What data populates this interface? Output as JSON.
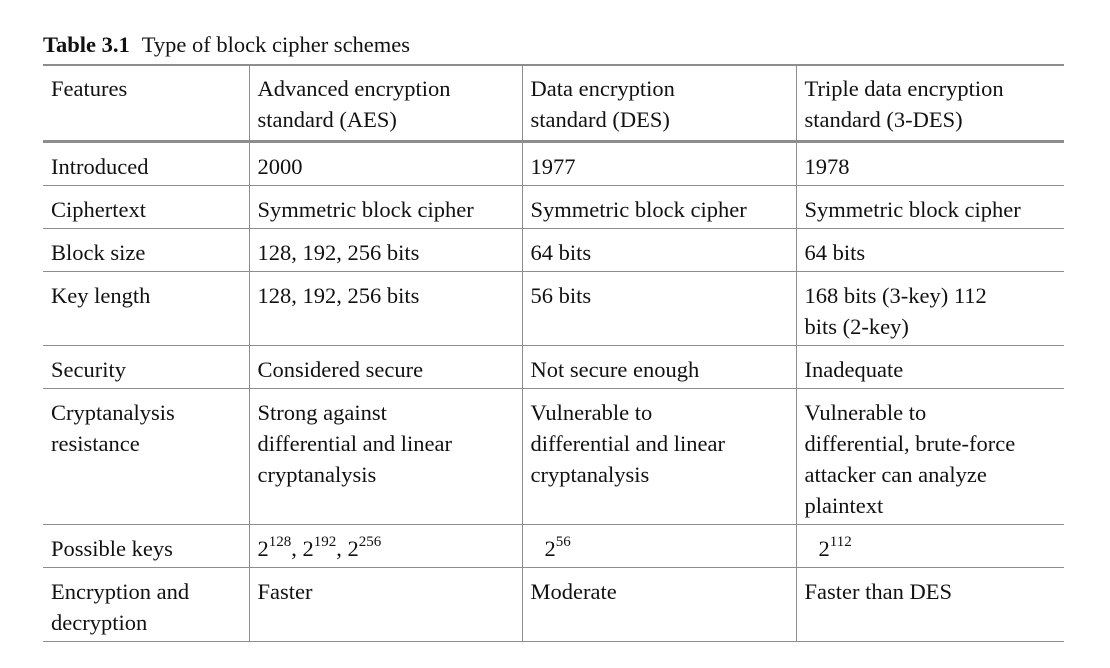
{
  "caption": {
    "label": "Table 3.1",
    "title": "Type of block cipher schemes"
  },
  "table": {
    "headers": [
      [
        "Features"
      ],
      [
        "Advanced encryption",
        "standard (AES)"
      ],
      [
        "Data encryption",
        "standard (DES)"
      ],
      [
        "Triple data encryption",
        "standard (3-DES)"
      ]
    ],
    "rows": [
      {
        "feature": [
          "Introduced"
        ],
        "aes": [
          "2000"
        ],
        "des": [
          "1977"
        ],
        "tdes": [
          "1978"
        ]
      },
      {
        "feature": [
          "Ciphertext"
        ],
        "aes": [
          "Symmetric block cipher"
        ],
        "des": [
          "Symmetric block cipher"
        ],
        "tdes": [
          "Symmetric block cipher"
        ]
      },
      {
        "feature": [
          "Block size"
        ],
        "aes": [
          "128, 192, 256 bits"
        ],
        "des": [
          "64 bits"
        ],
        "tdes": [
          "64 bits"
        ]
      },
      {
        "feature": [
          "Key length"
        ],
        "aes": [
          "128, 192, 256 bits"
        ],
        "des": [
          "56 bits"
        ],
        "tdes": [
          "168 bits (3-key) 112",
          "bits (2-key)"
        ]
      },
      {
        "feature": [
          "Security"
        ],
        "aes": [
          "Considered secure"
        ],
        "des": [
          "Not secure enough"
        ],
        "tdes": [
          "Inadequate"
        ]
      },
      {
        "feature": [
          "Cryptanalysis",
          "resistance"
        ],
        "aes": [
          "Strong against",
          "differential and linear",
          "cryptanalysis"
        ],
        "des": [
          "Vulnerable to",
          "differential and linear",
          "cryptanalysis"
        ],
        "tdes": [
          "Vulnerable to",
          "differential, brute-force",
          "attacker can analyze",
          "plaintext"
        ]
      }
    ],
    "possible_keys": {
      "feature": "Possible keys",
      "base": "2",
      "sep": ", ",
      "aes_exponents": [
        "128",
        "192",
        "256"
      ],
      "des_exponent": "56",
      "tdes_exponent": "112"
    },
    "last_row": {
      "feature": [
        "Encryption and",
        "decryption"
      ],
      "aes": [
        "Faster"
      ],
      "des": [
        "Moderate"
      ],
      "tdes": [
        "Faster than DES"
      ]
    }
  }
}
